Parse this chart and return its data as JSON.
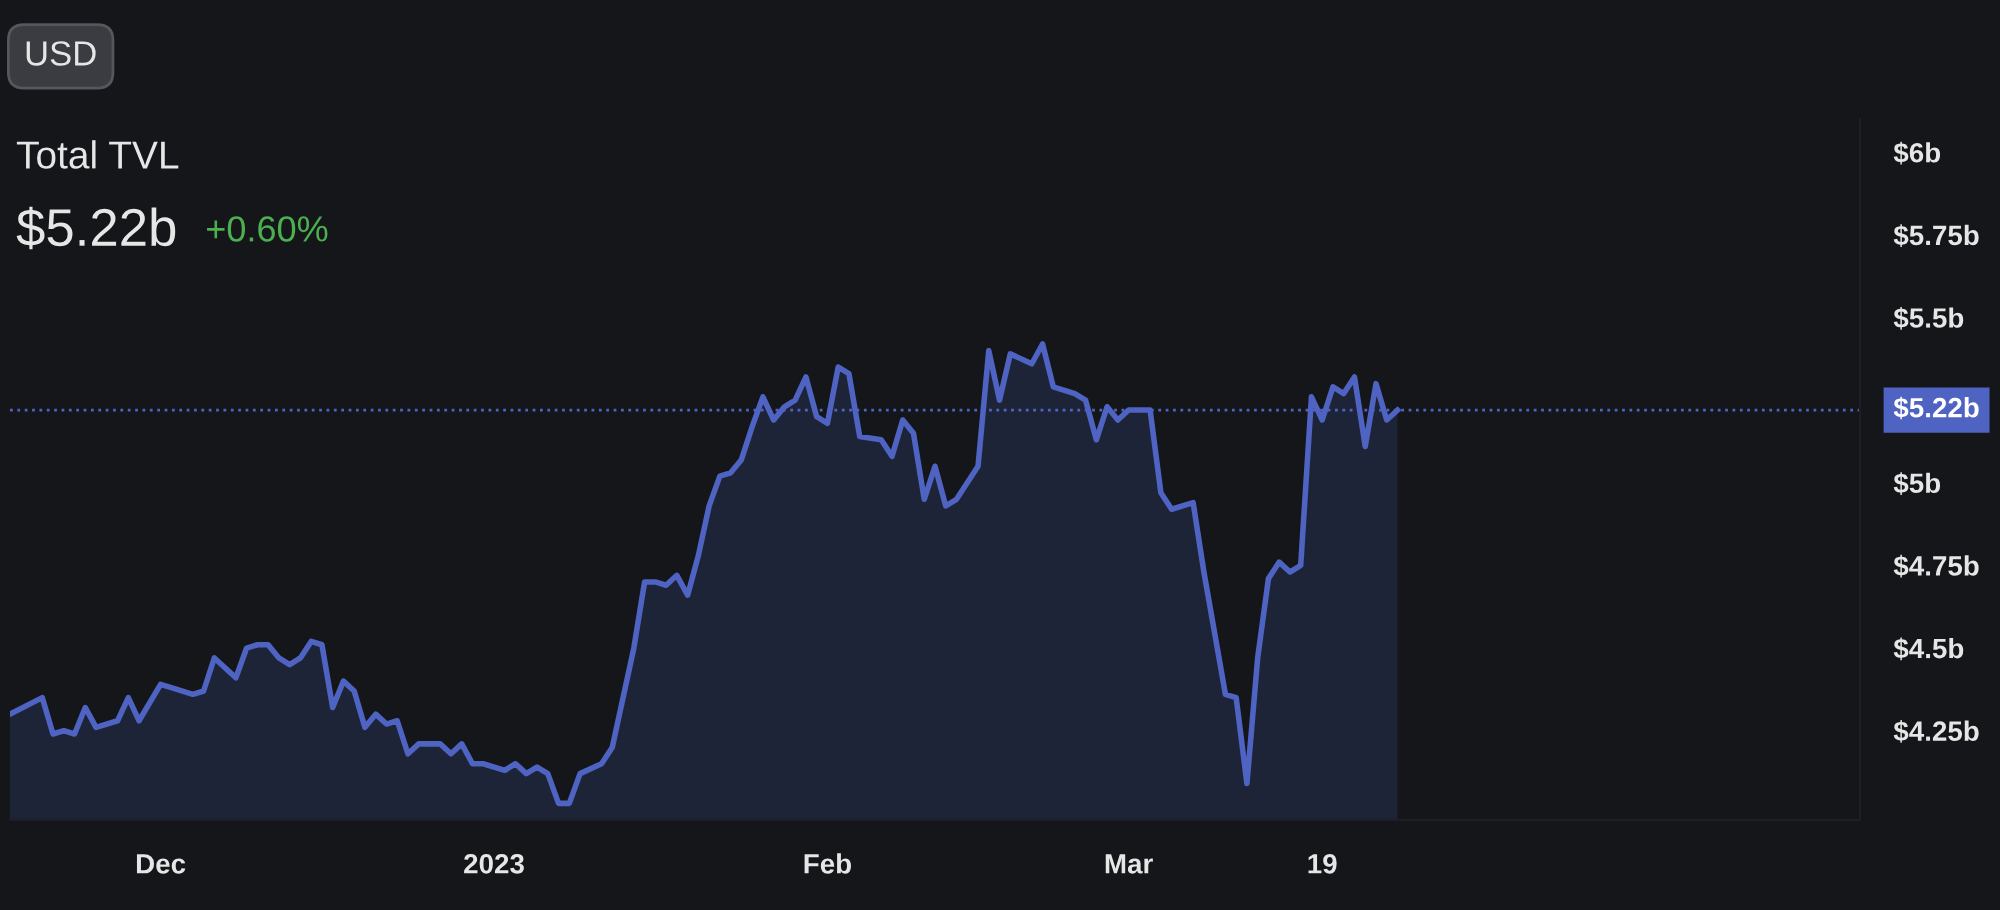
{
  "chart_data": {
    "type": "area",
    "title": "Total TVL",
    "subtitle": "$5.22b",
    "annotations": [
      "USD",
      "+0.60%"
    ],
    "x": [
      "2022-11-17",
      "2022-11-20",
      "2022-11-21",
      "2022-11-22",
      "2022-11-23",
      "2022-11-24",
      "2022-11-25",
      "2022-11-27",
      "2022-11-28",
      "2022-11-29",
      "2022-12-01",
      "2022-12-02",
      "2022-12-04",
      "2022-12-05",
      "2022-12-06",
      "2022-12-08",
      "2022-12-09",
      "2022-12-10",
      "2022-12-11",
      "2022-12-12",
      "2022-12-13",
      "2022-12-14",
      "2022-12-15",
      "2022-12-16",
      "2022-12-17",
      "2022-12-18",
      "2022-12-19",
      "2022-12-20",
      "2022-12-21",
      "2022-12-22",
      "2022-12-23",
      "2022-12-24",
      "2022-12-25",
      "2022-12-27",
      "2022-12-28",
      "2022-12-29",
      "2022-12-30",
      "2022-12-31",
      "2023-01-02",
      "2023-01-03",
      "2023-01-04",
      "2023-01-05",
      "2023-01-06",
      "2023-01-07",
      "2023-01-08",
      "2023-01-09",
      "2023-01-11",
      "2023-01-12",
      "2023-01-13",
      "2023-01-14",
      "2023-01-15",
      "2023-01-16",
      "2023-01-17",
      "2023-01-18",
      "2023-01-19",
      "2023-01-20",
      "2023-01-21",
      "2023-01-22",
      "2023-01-23",
      "2023-01-24",
      "2023-01-25",
      "2023-01-26",
      "2023-01-27",
      "2023-01-28",
      "2023-01-29",
      "2023-01-30",
      "2023-01-31",
      "2023-02-01",
      "2023-02-02",
      "2023-02-03",
      "2023-02-04",
      "2023-02-06",
      "2023-02-07",
      "2023-02-08",
      "2023-02-09",
      "2023-02-10",
      "2023-02-11",
      "2023-02-12",
      "2023-02-13",
      "2023-02-15",
      "2023-02-16",
      "2023-02-17",
      "2023-02-18",
      "2023-02-20",
      "2023-02-21",
      "2023-02-22",
      "2023-02-24",
      "2023-02-25",
      "2023-02-26",
      "2023-02-27",
      "2023-02-28",
      "2023-03-01",
      "2023-03-03",
      "2023-03-04",
      "2023-03-05",
      "2023-03-07",
      "2023-03-08",
      "2023-03-10",
      "2023-03-11",
      "2023-03-12",
      "2023-03-13",
      "2023-03-14",
      "2023-03-15",
      "2023-03-16",
      "2023-03-17",
      "2023-03-18",
      "2023-03-19",
      "2023-03-20",
      "2023-03-21",
      "2023-03-22",
      "2023-03-23",
      "2023-03-24",
      "2023-03-25",
      "2023-03-26"
    ],
    "series": [
      {
        "color": "#4f63c2",
        "values": [
          4.3,
          4.35,
          4.24,
          4.25,
          4.24,
          4.32,
          4.26,
          4.28,
          4.35,
          4.28,
          4.39,
          4.38,
          4.36,
          4.37,
          4.47,
          4.41,
          4.5,
          4.51,
          4.51,
          4.47,
          4.45,
          4.47,
          4.52,
          4.51,
          4.32,
          4.4,
          4.37,
          4.26,
          4.3,
          4.27,
          4.28,
          4.18,
          4.21,
          4.21,
          4.18,
          4.21,
          4.15,
          4.15,
          4.13,
          4.15,
          4.12,
          4.14,
          4.12,
          4.03,
          4.03,
          4.12,
          4.15,
          4.2,
          4.35,
          4.5,
          4.7,
          4.7,
          4.69,
          4.72,
          4.66,
          4.78,
          4.93,
          5.02,
          5.03,
          5.07,
          5.17,
          5.26,
          5.19,
          5.23,
          5.25,
          5.32,
          5.2,
          5.18,
          5.35,
          5.33,
          5.14,
          5.13,
          5.08,
          5.19,
          5.15,
          4.95,
          5.05,
          4.93,
          4.95,
          5.05,
          5.4,
          5.25,
          5.39,
          5.36,
          5.42,
          5.29,
          5.27,
          5.25,
          5.13,
          5.23,
          5.19,
          5.22,
          5.22,
          4.97,
          4.92,
          4.94,
          4.73,
          4.36,
          4.35,
          4.09,
          4.47,
          4.71,
          4.76,
          4.73,
          4.75,
          5.26,
          5.19,
          5.29,
          5.27,
          5.32,
          5.11,
          5.3,
          5.19,
          5.22
        ]
      }
    ],
    "xlim": [
      "2022-11-17",
      "2023-05-08"
    ],
    "xticks": [
      {
        "value": "2022-12-01",
        "label": "Dec"
      },
      {
        "value": "2023-01-01",
        "label": "2023"
      },
      {
        "value": "2023-02-01",
        "label": "Feb"
      },
      {
        "value": "2023-03-01",
        "label": "Mar"
      },
      {
        "value": "2023-03-19",
        "label": "19"
      }
    ],
    "ylim": [
      3.98,
      6.1
    ],
    "yticks": [
      {
        "value": 4.25,
        "label": "$4.25b"
      },
      {
        "value": 4.5,
        "label": "$4.5b"
      },
      {
        "value": 4.75,
        "label": "$4.75b"
      },
      {
        "value": 5,
        "label": "$5b"
      },
      {
        "value": 5.5,
        "label": "$5.5b"
      },
      {
        "value": 5.75,
        "label": "$5.75b"
      },
      {
        "value": 6,
        "label": "$6b"
      }
    ],
    "ref_lines": [
      {
        "axis": "y",
        "value": 5.22,
        "label": "$5.22b",
        "color": "#4f63c2",
        "line_style": "dotted"
      }
    ],
    "grid": false,
    "legend": false
  }
}
